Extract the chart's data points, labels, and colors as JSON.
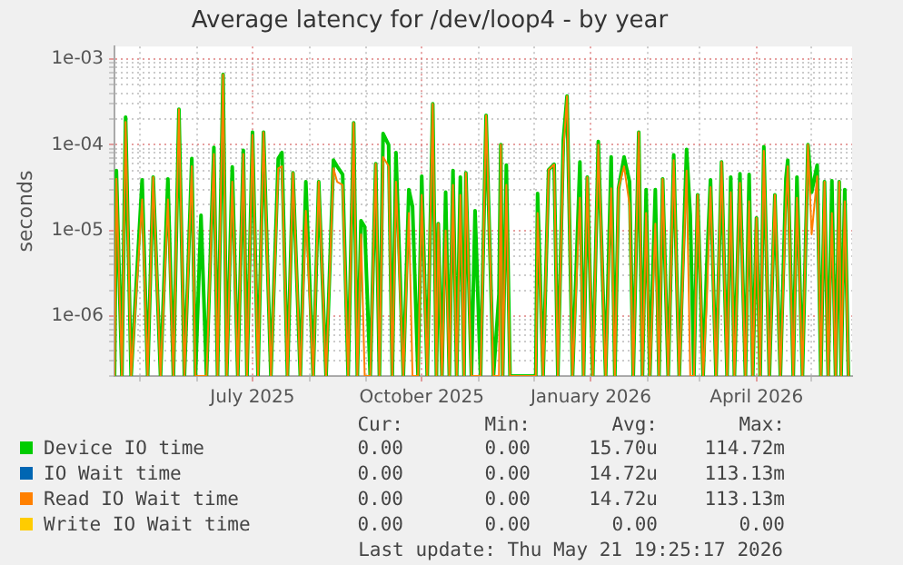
{
  "chart_data": {
    "type": "line",
    "title": "Average latency for /dev/loop4 - by year",
    "ylabel": "seconds",
    "x": [
      "2025-04-17",
      "2025-04-18",
      "2025-04-21",
      "2025-04-23",
      "2025-04-26",
      "2025-05-02",
      "2025-05-05",
      "2025-05-08",
      "2025-05-12",
      "2025-05-16",
      "2025-05-19",
      "2025-05-22",
      "2025-05-25",
      "2025-05-29",
      "2025-05-31",
      "2025-06-03",
      "2025-06-06",
      "2025-06-10",
      "2025-06-12",
      "2025-06-15",
      "2025-06-17",
      "2025-06-20",
      "2025-06-23",
      "2025-06-26",
      "2025-06-28",
      "2025-07-01",
      "2025-07-04",
      "2025-07-07",
      "2025-07-11",
      "2025-07-15",
      "2025-07-17",
      "2025-07-20",
      "2025-07-23",
      "2025-07-27",
      "2025-07-30",
      "2025-08-03",
      "2025-08-06",
      "2025-08-10",
      "2025-08-14",
      "2025-08-16",
      "2025-08-19",
      "2025-08-22",
      "2025-08-25",
      "2025-08-27",
      "2025-08-29",
      "2025-08-31",
      "2025-09-03",
      "2025-09-06",
      "2025-09-08",
      "2025-09-10",
      "2025-09-13",
      "2025-09-15",
      "2025-09-17",
      "2025-09-21",
      "2025-09-24",
      "2025-09-26",
      "2025-09-29",
      "2025-10-01",
      "2025-10-04",
      "2025-10-07",
      "2025-10-09",
      "2025-10-10",
      "2025-10-12",
      "2025-10-14",
      "2025-10-16",
      "2025-10-18",
      "2025-10-20",
      "2025-10-22",
      "2025-10-24",
      "2025-10-25",
      "2025-10-28",
      "2025-10-30",
      "2025-11-02",
      "2025-11-05",
      "2025-11-09",
      "2025-11-12",
      "2025-11-13",
      "2025-11-14",
      "2025-11-16",
      "2025-11-18",
      "2025-12-02",
      "2025-12-03",
      "2025-12-06",
      "2025-12-09",
      "2025-12-12",
      "2025-12-14",
      "2025-12-17",
      "2025-12-19",
      "2025-12-22",
      "2025-12-26",
      "2025-12-28",
      "2025-12-30",
      "2026-01-02",
      "2026-01-05",
      "2026-01-09",
      "2026-01-12",
      "2026-01-14",
      "2026-01-16",
      "2026-01-19",
      "2026-01-22",
      "2026-01-24",
      "2026-01-27",
      "2026-01-29",
      "2026-01-31",
      "2026-02-02",
      "2026-02-05",
      "2026-02-07",
      "2026-02-09",
      "2026-02-12",
      "2026-02-15",
      "2026-02-18",
      "2026-02-22",
      "2026-02-24",
      "2026-02-26",
      "2026-02-28",
      "2026-03-03",
      "2026-03-05",
      "2026-03-07",
      "2026-03-10",
      "2026-03-13",
      "2026-03-16",
      "2026-03-18",
      "2026-03-20",
      "2026-03-23",
      "2026-03-26",
      "2026-03-28",
      "2026-03-30",
      "2026-04-01",
      "2026-04-03",
      "2026-04-05",
      "2026-04-08",
      "2026-04-11",
      "2026-04-14",
      "2026-04-17",
      "2026-04-18",
      "2026-04-21",
      "2026-04-23",
      "2026-04-26",
      "2026-04-29",
      "2026-05-01",
      "2026-05-04",
      "2026-05-06",
      "2026-05-08",
      "2026-05-10",
      "2026-05-12",
      "2026-05-14",
      "2026-05-16",
      "2026-05-17",
      "2026-05-19",
      "2026-05-21"
    ],
    "series": [
      {
        "name": "Device IO time",
        "color": "#00cc00",
        "values": [
          2e-07,
          5e-05,
          2e-07,
          0.00021,
          2e-07,
          3.9e-05,
          2e-07,
          4.2e-05,
          2e-07,
          4e-05,
          2e-07,
          0.00026,
          2e-07,
          6.9e-05,
          2e-07,
          1.5e-05,
          2e-07,
          9.3e-05,
          2e-07,
          0.00066,
          2e-07,
          5.5e-05,
          2e-07,
          8.6e-05,
          2e-07,
          0.00014,
          2e-07,
          0.00014,
          2e-07,
          6.9e-05,
          8.1e-05,
          2e-07,
          4.7e-05,
          2e-07,
          3.7e-05,
          2e-07,
          3.7e-05,
          2e-07,
          6.6e-05,
          5.6e-05,
          4.5e-05,
          2e-07,
          0.00018,
          2e-07,
          1.3e-05,
          1.1e-05,
          2e-07,
          6e-05,
          2e-07,
          0.000135,
          0.0001,
          2e-07,
          8.1e-05,
          2e-07,
          3e-05,
          1.9e-05,
          2e-07,
          4.3e-05,
          2e-07,
          0.0003,
          2e-07,
          1.2e-05,
          2e-07,
          2.8e-05,
          2e-07,
          5e-05,
          2e-07,
          4.2e-05,
          2e-07,
          4.7e-05,
          2e-07,
          1.7e-05,
          2e-07,
          0.00022,
          2e-07,
          1.8e-06,
          0.0001,
          2e-07,
          5.8e-05,
          2e-07,
          2e-07,
          2.7e-05,
          2e-07,
          5.1e-05,
          5.9e-05,
          2e-07,
          0.000114,
          0.00037,
          2e-07,
          6.3e-05,
          2e-07,
          4.2e-05,
          2e-07,
          0.000109,
          2e-07,
          7.2e-05,
          2e-07,
          3.1e-05,
          7.2e-05,
          3.7e-05,
          2e-07,
          0.00014,
          2e-07,
          3e-05,
          2e-07,
          3e-05,
          2e-07,
          4e-05,
          2e-07,
          7.6e-05,
          2e-07,
          8.8e-05,
          1.5e-05,
          2e-07,
          2.6e-05,
          2e-07,
          3.9e-06,
          3.9e-05,
          2e-07,
          6.3e-05,
          2e-07,
          4.2e-05,
          2e-07,
          4.6e-05,
          2e-07,
          4.5e-05,
          2e-07,
          1.4e-05,
          2e-07,
          9.5e-05,
          2e-07,
          2.6e-05,
          2e-07,
          4e-05,
          6.6e-05,
          2e-07,
          4.2e-05,
          2e-07,
          0.0001,
          2.8e-05,
          5.8e-05,
          2e-07,
          3.7e-05,
          2e-07,
          3.8e-05,
          2e-07,
          3.7e-05,
          2e-07,
          3e-05,
          2e-07
        ]
      },
      {
        "name": "IO Wait time",
        "color": "#0066b3",
        "values": [
          null,
          null,
          null,
          null,
          null,
          null,
          null,
          null,
          null,
          null,
          null,
          null,
          null,
          null,
          null,
          null,
          null,
          null,
          null,
          null,
          null,
          null,
          null,
          null,
          null,
          null,
          null,
          null,
          null,
          null,
          null,
          null,
          null,
          null,
          null,
          null,
          null,
          null,
          null,
          null,
          null,
          null,
          null,
          null,
          null,
          null,
          null,
          null,
          null,
          null,
          null,
          null,
          null,
          null,
          null,
          null,
          null,
          null,
          null,
          null,
          null,
          null,
          null,
          null,
          null,
          null,
          null,
          null,
          null,
          null,
          null,
          null,
          null,
          null,
          null,
          null,
          null,
          null,
          null,
          null,
          null,
          null,
          null,
          null,
          null,
          null,
          null,
          null,
          null,
          null,
          null,
          null,
          null,
          null,
          null,
          null,
          null,
          null,
          null,
          null,
          null,
          null,
          null,
          null,
          null,
          null,
          null,
          null,
          null,
          null,
          null,
          null,
          null,
          null,
          null,
          null,
          null,
          null,
          null,
          null,
          null,
          null,
          null,
          null,
          null,
          null,
          null,
          null,
          null,
          null,
          null,
          null,
          null,
          null,
          null,
          null,
          null,
          null,
          null,
          null,
          null,
          null,
          null,
          null,
          null,
          null,
          null,
          null,
          null,
          null
        ]
      },
      {
        "name": "Read IO Wait time",
        "color": "#ff8000",
        "values": [
          2e-07,
          4e-05,
          2e-07,
          0.000185,
          2e-07,
          2.3e-05,
          2e-07,
          4.2e-05,
          2e-07,
          2.3e-05,
          2e-07,
          0.00026,
          2e-07,
          5.6e-05,
          2e-07,
          2e-07,
          2e-07,
          7.8e-05,
          2e-07,
          0.00066,
          2e-07,
          3.7e-05,
          2e-07,
          7.8e-05,
          2e-07,
          0.00013,
          2e-07,
          0.00014,
          2e-07,
          5.3e-05,
          5.6e-05,
          2e-07,
          4.7e-05,
          2e-07,
          1.7e-05,
          2e-07,
          3.7e-05,
          2e-07,
          5.3e-05,
          3.7e-05,
          3.4e-05,
          2e-07,
          0.00018,
          2e-07,
          9e-06,
          2e-07,
          2e-07,
          6e-05,
          2e-07,
          7.2e-05,
          5.6e-05,
          2e-07,
          3.7e-05,
          2e-07,
          1.6e-05,
          2e-07,
          2e-07,
          2.6e-05,
          2e-07,
          0.0003,
          2e-07,
          1.2e-05,
          2e-07,
          1e-05,
          2e-07,
          3.4e-05,
          2e-07,
          2.6e-05,
          2e-07,
          4.7e-05,
          2e-07,
          2e-07,
          2e-07,
          0.00022,
          2e-07,
          2e-07,
          0.0001,
          2e-07,
          3.4e-05,
          2e-07,
          2e-07,
          1.6e-05,
          2e-07,
          5.1e-05,
          5.9e-05,
          2e-07,
          8.5e-05,
          0.00037,
          2e-07,
          2.4e-05,
          2e-07,
          4.2e-05,
          2e-07,
          0.0001,
          2e-07,
          3.1e-05,
          2e-07,
          3.1e-05,
          5.6e-05,
          2e-05,
          2e-07,
          0.00014,
          2e-07,
          1.6e-05,
          2e-07,
          1.2e-05,
          2e-07,
          4e-05,
          2e-07,
          6.6e-05,
          2e-07,
          5e-05,
          2e-07,
          2e-07,
          2.6e-05,
          2e-07,
          1.5e-06,
          3.2e-05,
          2e-07,
          6.3e-05,
          2e-07,
          2.8e-05,
          2e-07,
          3.6e-05,
          2e-07,
          2.2e-05,
          2e-07,
          1.4e-05,
          2e-07,
          8.5e-05,
          2e-07,
          2.6e-05,
          2e-07,
          2.2e-05,
          5.6e-05,
          2e-07,
          2.4e-05,
          2e-07,
          0.0001,
          9e-06,
          4.3e-05,
          2e-07,
          3.7e-05,
          2e-07,
          1.6e-05,
          2e-07,
          3.7e-05,
          2e-07,
          2.2e-05,
          2e-07
        ]
      },
      {
        "name": "Write IO Wait time",
        "color": "#ffcc00",
        "values": [
          null,
          null,
          null,
          null,
          null,
          null,
          null,
          null,
          null,
          null,
          null,
          null,
          null,
          null,
          null,
          null,
          null,
          null,
          null,
          null,
          null,
          null,
          null,
          null,
          null,
          null,
          null,
          null,
          null,
          null,
          null,
          null,
          null,
          null,
          null,
          null,
          null,
          null,
          null,
          null,
          null,
          null,
          null,
          null,
          null,
          null,
          null,
          null,
          null,
          null,
          null,
          null,
          null,
          null,
          null,
          null,
          null,
          null,
          null,
          null,
          null,
          null,
          null,
          null,
          null,
          null,
          null,
          null,
          null,
          null,
          null,
          null,
          null,
          null,
          null,
          null,
          null,
          null,
          null,
          null,
          null,
          null,
          null,
          null,
          null,
          null,
          null,
          null,
          null,
          null,
          null,
          null,
          null,
          null,
          null,
          null,
          null,
          null,
          null,
          null,
          null,
          null,
          null,
          null,
          null,
          null,
          null,
          null,
          null,
          null,
          null,
          null,
          null,
          null,
          null,
          null,
          null,
          null,
          null,
          null,
          null,
          null,
          null,
          null,
          null,
          null,
          null,
          null,
          null,
          null,
          null,
          null,
          null,
          null,
          null,
          null,
          null,
          null,
          null,
          null,
          null,
          null,
          null,
          null,
          null,
          null,
          null,
          null,
          null,
          null
        ]
      }
    ],
    "log": "y",
    "ylim": [
      2e-07,
      0.0014
    ],
    "yticks": [
      {
        "value": 2e-07,
        "label": null
      },
      {
        "value": 3e-07,
        "label": null
      },
      {
        "value": 4e-07,
        "label": null
      },
      {
        "value": 5e-07,
        "label": null
      },
      {
        "value": 6e-07,
        "label": null
      },
      {
        "value": 7e-07,
        "label": null
      },
      {
        "value": 8e-07,
        "label": null
      },
      {
        "value": 9e-07,
        "label": null
      },
      {
        "value": 1e-06,
        "label": "1e-06"
      },
      {
        "value": 2e-06,
        "label": null
      },
      {
        "value": 3e-06,
        "label": null
      },
      {
        "value": 4e-06,
        "label": null
      },
      {
        "value": 5e-06,
        "label": null
      },
      {
        "value": 6e-06,
        "label": null
      },
      {
        "value": 7e-06,
        "label": null
      },
      {
        "value": 8e-06,
        "label": null
      },
      {
        "value": 9e-06,
        "label": null
      },
      {
        "value": 1e-05,
        "label": "1e-05"
      },
      {
        "value": 2e-05,
        "label": null
      },
      {
        "value": 3e-05,
        "label": null
      },
      {
        "value": 4e-05,
        "label": null
      },
      {
        "value": 5e-05,
        "label": null
      },
      {
        "value": 6e-05,
        "label": null
      },
      {
        "value": 7e-05,
        "label": null
      },
      {
        "value": 8e-05,
        "label": null
      },
      {
        "value": 9e-05,
        "label": null
      },
      {
        "value": 0.0001,
        "label": "1e-04"
      },
      {
        "value": 0.0002,
        "label": null
      },
      {
        "value": 0.0003,
        "label": null
      },
      {
        "value": 0.0004,
        "label": null
      },
      {
        "value": 0.0005,
        "label": null
      },
      {
        "value": 0.0006,
        "label": null
      },
      {
        "value": 0.0007,
        "label": null
      },
      {
        "value": 0.0008,
        "label": null
      },
      {
        "value": 0.0009,
        "label": null
      },
      {
        "value": 0.001,
        "label": "1e-03"
      }
    ],
    "xlim": [
      "2025-04-17",
      "2026-05-23"
    ],
    "xticks": [
      {
        "value": "2025-05-01",
        "label": null
      },
      {
        "value": "2025-06-01",
        "label": null
      },
      {
        "value": "2025-07-01",
        "label": "July 2025"
      },
      {
        "value": "2025-08-01",
        "label": null
      },
      {
        "value": "2025-09-01",
        "label": null
      },
      {
        "value": "2025-10-01",
        "label": "October 2025"
      },
      {
        "value": "2025-11-01",
        "label": null
      },
      {
        "value": "2025-12-01",
        "label": null
      },
      {
        "value": "2026-01-01",
        "label": "January 2026"
      },
      {
        "value": "2026-02-01",
        "label": null
      },
      {
        "value": "2026-03-01",
        "label": null
      },
      {
        "value": "2026-04-01",
        "label": "April 2026"
      },
      {
        "value": "2026-05-01",
        "label": null
      }
    ],
    "grid": true,
    "marker": "none",
    "legend": "bottom",
    "annotations": [
      "Cur:",
      "Min:",
      "Avg:",
      "Max:",
      "0.00",
      "0.00",
      "15.70u",
      "114.72m",
      "0.00",
      "0.00",
      "14.72u",
      "113.13m",
      "0.00",
      "0.00",
      "14.72u",
      "113.13m",
      "0.00",
      "0.00",
      "0.00",
      "0.00",
      "Last update: Thu May 21 19:25:17 2026"
    ]
  }
}
